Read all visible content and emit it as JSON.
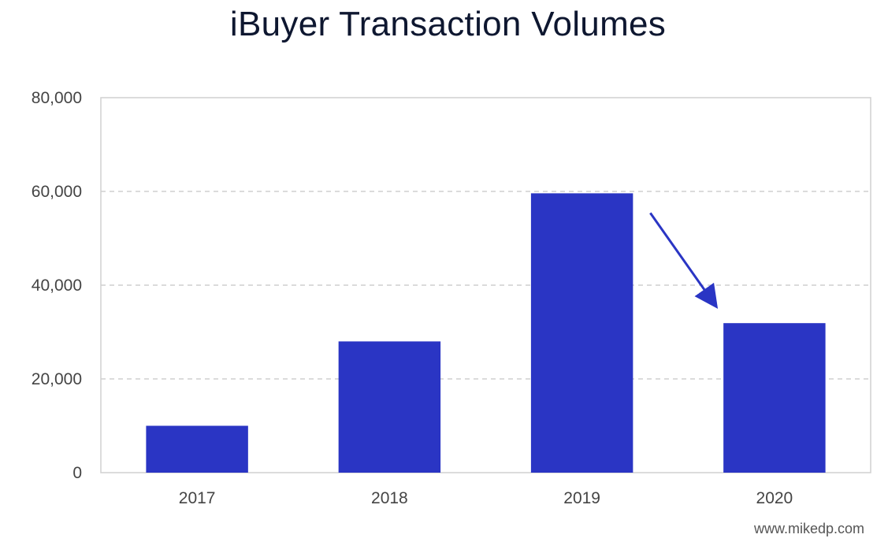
{
  "chart_data": {
    "type": "bar",
    "title": "iBuyer Transaction Volumes",
    "categories": [
      "2017",
      "2018",
      "2019",
      "2020"
    ],
    "values": [
      10000,
      28000,
      59600,
      31900
    ],
    "ylim": [
      0,
      80000
    ],
    "yticks": [
      0,
      20000,
      40000,
      60000,
      80000
    ],
    "ytick_labels": [
      "0",
      "20,000",
      "40,000",
      "60,000",
      "80,000"
    ],
    "xlabel": "",
    "ylabel": "",
    "grid": true,
    "bar_color": "#2a35c4",
    "annotation": {
      "type": "arrow",
      "from_category": "2019",
      "to_category": "2020",
      "direction": "down",
      "color": "#2a35c4"
    }
  },
  "footer": {
    "source": "www.mikedp.com"
  }
}
